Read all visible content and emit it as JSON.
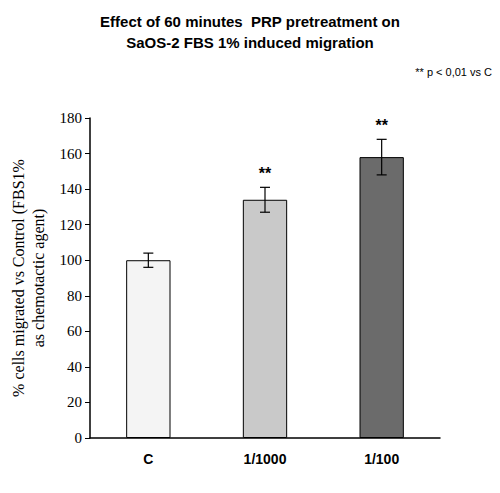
{
  "chart_data": {
    "type": "bar",
    "title": "Effect of 60 minutes  PRP pretreatment on\nSaOS-2 FBS 1% induced migration",
    "ylabel": "% cells migrated vs Control (FBS1%\nas chemotactic agent)",
    "categories": [
      "C",
      "1/1000",
      "1/100"
    ],
    "values": [
      100,
      134,
      158
    ],
    "errors": [
      4,
      7,
      10
    ],
    "colors": [
      "#f4f4f4",
      "#c9c9c9",
      "#6b6b6b"
    ],
    "ylim": [
      0,
      180
    ],
    "yticks": [
      0,
      20,
      40,
      60,
      80,
      100,
      120,
      140,
      160,
      180
    ],
    "grid": false,
    "annotations": [
      {
        "category": "1/1000",
        "text": "**"
      },
      {
        "category": "1/100",
        "text": "**"
      }
    ],
    "note": "** p < 0,01 vs C"
  }
}
